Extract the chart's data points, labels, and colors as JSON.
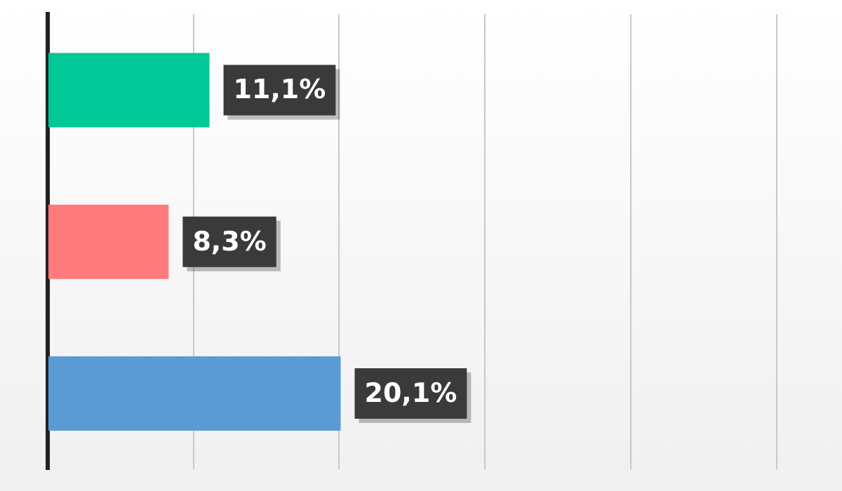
{
  "chart_data": {
    "type": "bar",
    "orientation": "horizontal",
    "categories": [
      null,
      null,
      null
    ],
    "values": [
      11.1,
      8.3,
      20.1
    ],
    "colors": [
      "#00c896",
      "#ff7b7b",
      "#5b9bd5"
    ],
    "value_labels": [
      "11,1%",
      "8,3%",
      "20,1%"
    ],
    "xlim": [
      0,
      54.5
    ],
    "xticks": [
      {
        "value": 0,
        "label": null
      },
      {
        "value": 10,
        "label": null
      },
      {
        "value": 20,
        "label": null
      },
      {
        "value": 30,
        "label": null
      },
      {
        "value": 40,
        "label": null
      },
      {
        "value": 50,
        "label": null
      }
    ],
    "grid": "x",
    "legend": false
  }
}
